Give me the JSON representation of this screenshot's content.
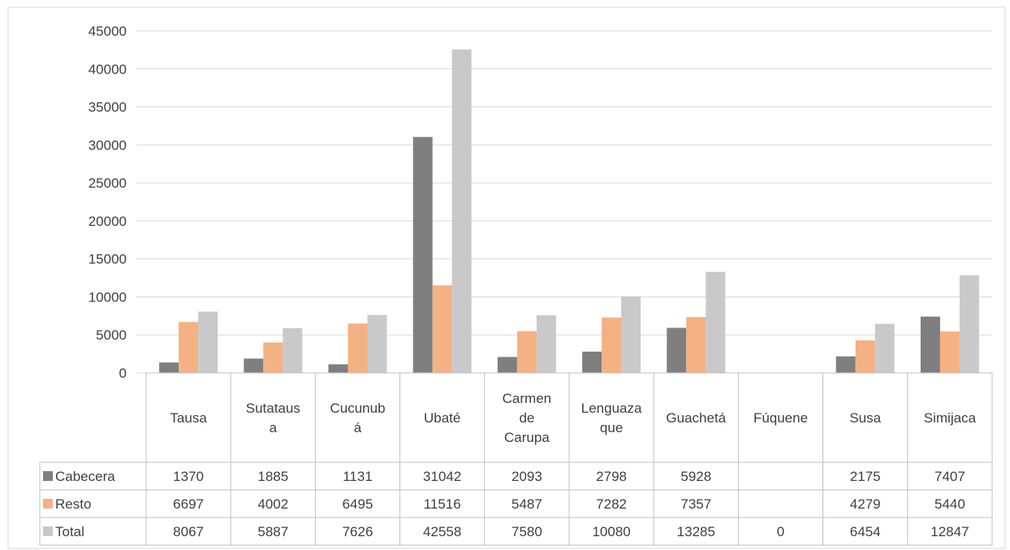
{
  "chart_data": {
    "type": "bar",
    "title": "",
    "xlabel": "",
    "ylabel": "",
    "ylim": [
      0,
      45000
    ],
    "yticks": [
      0,
      5000,
      10000,
      15000,
      20000,
      25000,
      30000,
      35000,
      40000,
      45000
    ],
    "grid": true,
    "legend": "data-table",
    "categories": [
      [
        "Tausa"
      ],
      [
        "Sutataus",
        "a"
      ],
      [
        "Cucunub",
        "á"
      ],
      [
        "Ubaté"
      ],
      [
        "Carmen",
        "de",
        "Carupa"
      ],
      [
        "Lenguaza",
        "que"
      ],
      [
        "Guachetá"
      ],
      [
        "Fúquene"
      ],
      [
        "Susa"
      ],
      [
        "Simijaca"
      ]
    ],
    "series": [
      {
        "name": "Cabecera",
        "color": "#7f7f7f",
        "values": [
          1370,
          1885,
          1131,
          31042,
          2093,
          2798,
          5928,
          null,
          2175,
          7407
        ]
      },
      {
        "name": "Resto",
        "color": "#f4b183",
        "values": [
          6697,
          4002,
          6495,
          11516,
          5487,
          7282,
          7357,
          null,
          4279,
          5440
        ]
      },
      {
        "name": "Total",
        "color": "#c9c9c9",
        "values": [
          8067,
          5887,
          7626,
          42558,
          7580,
          10080,
          13285,
          0,
          6454,
          12847
        ]
      }
    ]
  }
}
